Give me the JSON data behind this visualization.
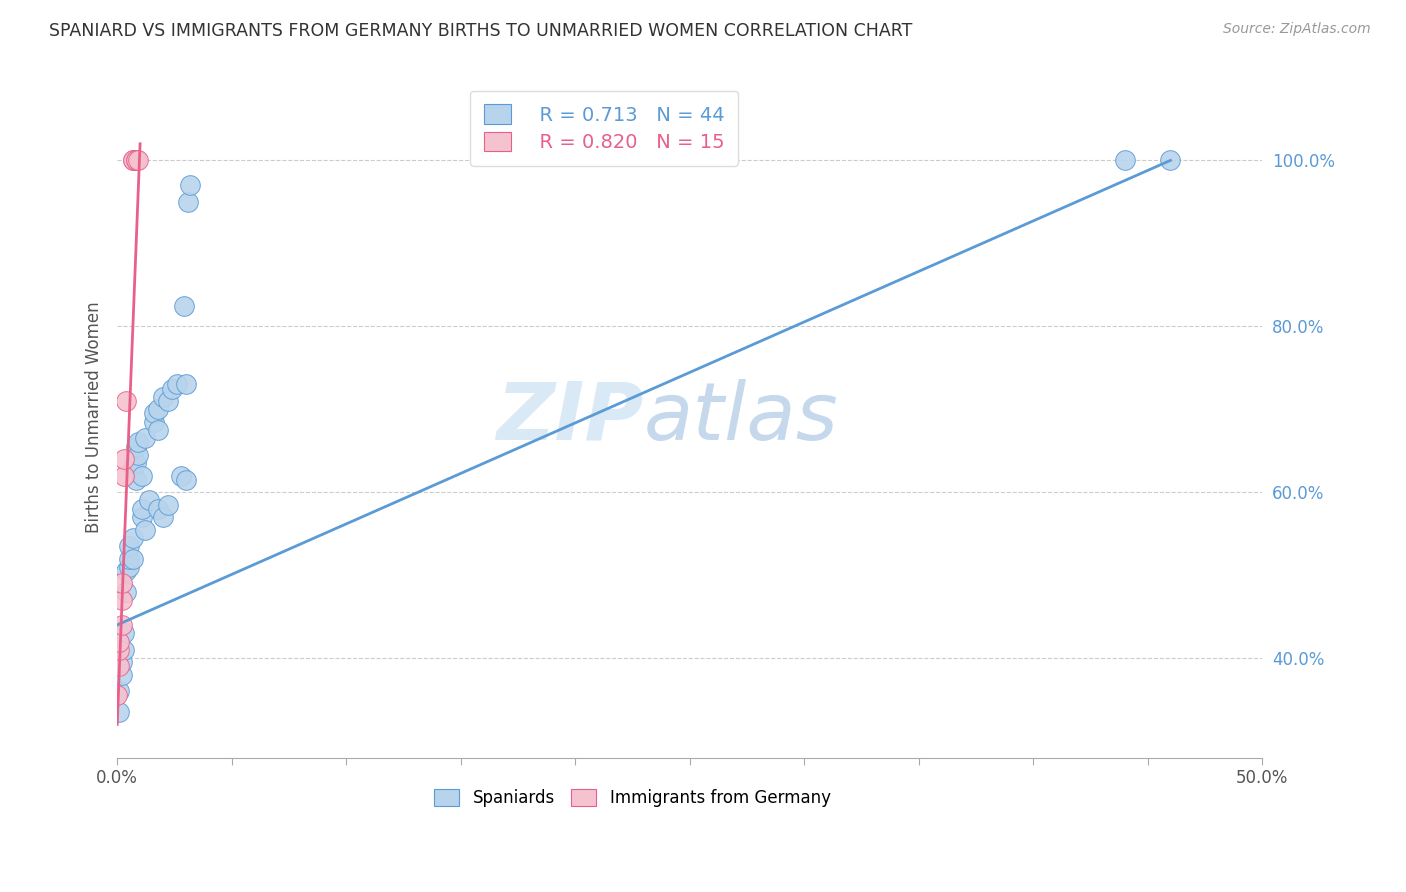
{
  "title": "SPANIARD VS IMMIGRANTS FROM GERMANY BIRTHS TO UNMARRIED WOMEN CORRELATION CHART",
  "source": "Source: ZipAtlas.com",
  "ylabel": "Births to Unmarried Women",
  "legend_blue_label": "Spaniards",
  "legend_pink_label": "Immigrants from Germany",
  "legend_blue_R": "R = 0.713",
  "legend_blue_N": "N = 44",
  "legend_pink_R": "R = 0.820",
  "legend_pink_N": "N = 15",
  "watermark_zip": "ZIP",
  "watermark_atlas": "atlas",
  "blue_color": "#b8d4ec",
  "pink_color": "#f5c2d0",
  "blue_line_color": "#5b9bd5",
  "pink_line_color": "#e8608a",
  "blue_scatter": [
    [
      0.1,
      33.5
    ],
    [
      0.1,
      36.0
    ],
    [
      0.2,
      38.0
    ],
    [
      0.2,
      39.5
    ],
    [
      0.3,
      41.0
    ],
    [
      0.3,
      43.0
    ],
    [
      0.4,
      48.0
    ],
    [
      0.4,
      50.5
    ],
    [
      0.5,
      51.0
    ],
    [
      0.5,
      52.0
    ],
    [
      0.5,
      53.5
    ],
    [
      0.7,
      52.0
    ],
    [
      0.7,
      54.5
    ],
    [
      0.7,
      63.0
    ],
    [
      0.8,
      61.5
    ],
    [
      0.8,
      63.5
    ],
    [
      0.8,
      65.5
    ],
    [
      0.9,
      64.5
    ],
    [
      0.9,
      66.0
    ],
    [
      1.1,
      57.0
    ],
    [
      1.1,
      58.0
    ],
    [
      1.1,
      62.0
    ],
    [
      1.2,
      55.5
    ],
    [
      1.2,
      66.5
    ],
    [
      1.4,
      59.0
    ],
    [
      1.6,
      68.5
    ],
    [
      1.6,
      69.5
    ],
    [
      1.8,
      58.0
    ],
    [
      1.8,
      67.5
    ],
    [
      1.8,
      70.0
    ],
    [
      2.0,
      57.0
    ],
    [
      2.0,
      71.5
    ],
    [
      2.2,
      58.5
    ],
    [
      2.2,
      71.0
    ],
    [
      2.4,
      72.5
    ],
    [
      2.6,
      73.0
    ],
    [
      2.8,
      62.0
    ],
    [
      2.9,
      82.5
    ],
    [
      3.0,
      61.5
    ],
    [
      3.0,
      73.0
    ],
    [
      3.1,
      95.0
    ],
    [
      3.2,
      97.0
    ],
    [
      44.0,
      100.0
    ],
    [
      46.0,
      100.0
    ]
  ],
  "pink_scatter": [
    [
      0.0,
      35.5
    ],
    [
      0.1,
      39.0
    ],
    [
      0.1,
      41.0
    ],
    [
      0.1,
      42.0
    ],
    [
      0.2,
      44.0
    ],
    [
      0.2,
      47.0
    ],
    [
      0.2,
      49.0
    ],
    [
      0.3,
      62.0
    ],
    [
      0.3,
      64.0
    ],
    [
      0.4,
      71.0
    ],
    [
      0.7,
      100.0
    ],
    [
      0.7,
      100.0
    ],
    [
      0.8,
      100.0
    ],
    [
      0.8,
      100.0
    ],
    [
      0.9,
      100.0
    ]
  ],
  "blue_line_x": [
    0.0,
    46.0
  ],
  "blue_line_y": [
    44.0,
    100.0
  ],
  "pink_line_x": [
    0.0,
    1.0
  ],
  "pink_line_y": [
    32.0,
    102.0
  ],
  "xlim": [
    0.0,
    50.0
  ],
  "ylim": [
    28.0,
    110.0
  ],
  "ytick_positions": [
    40.0,
    60.0,
    80.0,
    100.0
  ],
  "ytick_labels": [
    "40.0%",
    "60.0%",
    "80.0%",
    "100.0%"
  ],
  "xtick_positions": [
    0.0,
    5.0,
    10.0,
    15.0,
    20.0,
    25.0,
    30.0,
    35.0,
    40.0,
    45.0,
    50.0
  ],
  "xtick_labels": [
    "0.0%",
    "",
    "",
    "",
    "",
    "",
    "",
    "",
    "",
    "",
    "50.0%"
  ]
}
